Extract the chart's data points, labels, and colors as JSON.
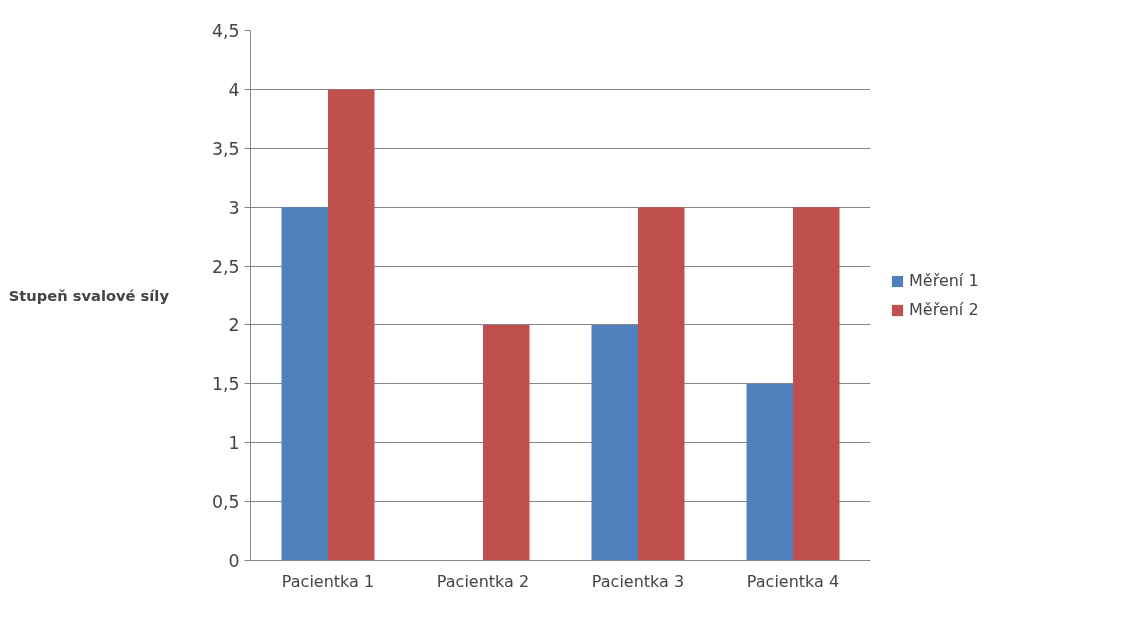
{
  "chart_data": {
    "type": "bar",
    "ylabel": "Stupeň svalové síly",
    "categories": [
      "Pacientka 1",
      "Pacientka 2",
      "Pacientka 3",
      "Pacientka 4"
    ],
    "series": [
      {
        "name": "Měření 1",
        "color": "#4f81bd",
        "values": [
          3,
          0,
          2,
          1.5
        ]
      },
      {
        "name": "Měření 2",
        "color": "#c0504d",
        "values": [
          4,
          2,
          3,
          3
        ]
      }
    ],
    "ylim": [
      0,
      4.5
    ],
    "yticks": [
      0,
      {
        "value": 0.5,
        "label": "0,5"
      },
      1,
      {
        "value": 1.5,
        "label": "1,5"
      },
      2,
      {
        "value": 2.5,
        "label": "2,5"
      },
      3,
      {
        "value": 3.5,
        "label": "3,5"
      },
      4,
      {
        "value": 4.5,
        "label": "4,5"
      }
    ],
    "grid": "y",
    "legend": "right"
  }
}
